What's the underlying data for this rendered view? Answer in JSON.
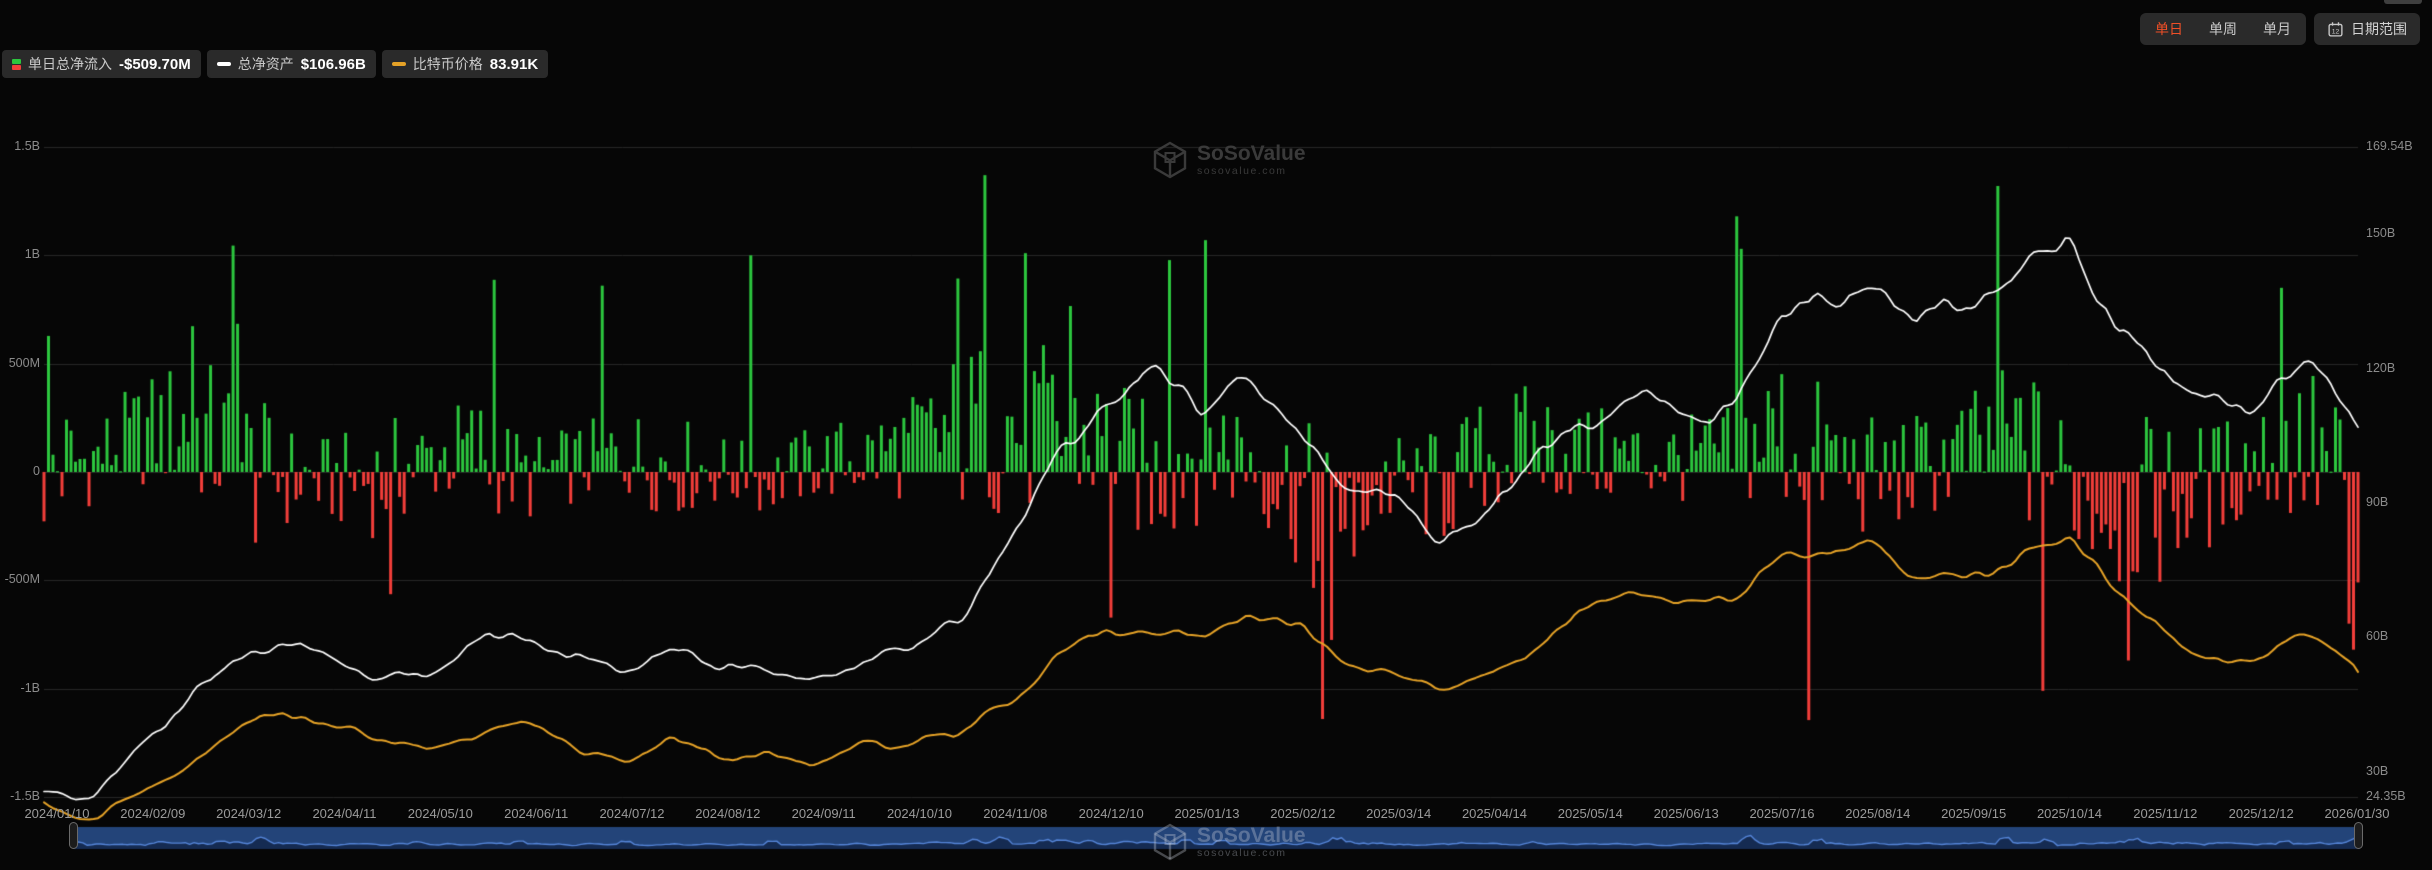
{
  "header": {
    "periods": [
      {
        "label": "单日",
        "active": true
      },
      {
        "label": "单周",
        "active": false
      },
      {
        "label": "单月",
        "active": false
      }
    ],
    "date_range_label": "日期范围"
  },
  "legend": {
    "items": [
      {
        "label": "单日总净流入",
        "value": "-$509.70M",
        "icon": "split-bar",
        "color_positive": "#2cc63e",
        "color_negative": "#f23e3a"
      },
      {
        "label": "总净资产",
        "value": "$106.96B",
        "icon": "dash",
        "color": "#ffffff"
      },
      {
        "label": "比特币价格",
        "value": "83.91K",
        "icon": "dash",
        "color": "#e5a227"
      }
    ]
  },
  "watermark": {
    "title": "SoSoValue",
    "subtitle": "sosovalue.com"
  },
  "chart_data": {
    "type": "mixed",
    "background": "#060606",
    "grid_color": "#262626",
    "x_axis": {
      "tick_labels": [
        "2024/01/10",
        "2024/02/09",
        "2024/03/12",
        "2024/04/11",
        "2024/05/10",
        "2024/06/11",
        "2024/07/12",
        "2024/08/12",
        "2024/09/11",
        "2024/10/10",
        "2024/11/08",
        "2024/12/10",
        "2025/01/13",
        "2025/02/12",
        "2025/03/14",
        "2025/04/14",
        "2025/05/14",
        "2025/06/13",
        "2025/07/16",
        "2025/08/14",
        "2025/09/15",
        "2025/10/14",
        "2025/11/12",
        "2025/12/12",
        "2026/01/30"
      ]
    },
    "left_axis": {
      "tick_labels": [
        "1.5B",
        "1B",
        "500M",
        "0",
        "-500M",
        "-1B",
        "-1.5B"
      ],
      "tick_values_m": [
        1500,
        1000,
        500,
        0,
        -500,
        -1000,
        -1500
      ]
    },
    "right_axis": {
      "tick_labels": [
        "169.54B",
        "150B",
        "120B",
        "90B",
        "60B",
        "30B",
        "24.35B"
      ],
      "tick_values_b": [
        169.54,
        150,
        120,
        90,
        60,
        30,
        24.35
      ]
    },
    "series": [
      {
        "name": "单日总净流入",
        "type": "bar",
        "axis": "left",
        "unit": "M USD",
        "latest_value": -509.7,
        "color_positive": "#2cc63e",
        "color_negative": "#f23e3a",
        "halfmonth_mean_m": [
          50,
          100,
          320,
          420,
          100,
          -40,
          -80,
          -60,
          120,
          180,
          -60,
          60,
          160,
          60,
          20,
          -80,
          80,
          120,
          220,
          350,
          400,
          300,
          250,
          -50,
          300,
          150,
          -200,
          -250,
          -80,
          -150,
          150,
          250,
          150,
          100,
          100,
          150,
          350,
          100,
          -60,
          60,
          180,
          250,
          -100,
          -300,
          -250,
          -100,
          150,
          200,
          -250
        ],
        "halfmonth_vol_m": [
          350,
          180,
          220,
          300,
          350,
          220,
          180,
          250,
          180,
          250,
          180,
          160,
          180,
          220,
          150,
          140,
          160,
          180,
          220,
          350,
          400,
          350,
          300,
          300,
          350,
          250,
          300,
          300,
          200,
          250,
          250,
          250,
          200,
          200,
          180,
          200,
          350,
          300,
          250,
          220,
          250,
          350,
          300,
          350,
          350,
          250,
          250,
          350,
          350
        ],
        "notable_bars": [
          [
            0.0013,
            628
          ],
          [
            0.065,
            673
          ],
          [
            0.0826,
            1045
          ],
          [
            0.0839,
            684
          ],
          [
            0.0919,
            -326
          ],
          [
            0.149,
            -564
          ],
          [
            0.194,
            887
          ],
          [
            0.241,
            860
          ],
          [
            0.305,
            1000
          ],
          [
            0.395,
            893
          ],
          [
            0.406,
            1370
          ],
          [
            0.425,
            1010
          ],
          [
            0.443,
            766
          ],
          [
            0.462,
            -672
          ],
          [
            0.486,
            978
          ],
          [
            0.501,
            1070
          ],
          [
            0.549,
            -535
          ],
          [
            0.5526,
            -1140
          ],
          [
            0.556,
            -775
          ],
          [
            0.566,
            -390
          ],
          [
            0.732,
            1180
          ],
          [
            0.734,
            1030
          ],
          [
            0.762,
            -1145
          ],
          [
            0.845,
            1320
          ],
          [
            0.864,
            -1010
          ],
          [
            0.9,
            -870
          ],
          [
            0.967,
            850
          ],
          [
            0.997,
            -700
          ],
          [
            0.9987,
            -820
          ],
          [
            1,
            -509.7
          ]
        ]
      },
      {
        "name": "总净资产",
        "type": "line",
        "axis": "right",
        "unit": "B USD",
        "latest_value": 106.96,
        "color": "#ffffff",
        "halfmonth_points_b": [
          26,
          24,
          36,
          46,
          57,
          60,
          56,
          51,
          53,
          59,
          61,
          56,
          51,
          58,
          52,
          54,
          51,
          56,
          59,
          66,
          80,
          98,
          112,
          118,
          112,
          120,
          110,
          94,
          90,
          83,
          87,
          100,
          109,
          114,
          111,
          113,
          129,
          136,
          138,
          130,
          134,
          141,
          149,
          130,
          118,
          113,
          110,
          124,
          107
        ]
      },
      {
        "name": "比特币价格",
        "type": "line",
        "axis": "price",
        "unit": "K USD",
        "latest_value": 83.91,
        "color": "#e5a227",
        "halfmonth_points_k": [
          46,
          40,
          48,
          57,
          68,
          71,
          67,
          63,
          60,
          66,
          69,
          62,
          57,
          65,
          59,
          61,
          57,
          63,
          62,
          67,
          74,
          90,
          97,
          95,
          94,
          101,
          97,
          85,
          84,
          78,
          83,
          93,
          101,
          108,
          105,
          104,
          116,
          119,
          121,
          111,
          113,
          117,
          126,
          109,
          95,
          87,
          89,
          94,
          84
        ]
      }
    ],
    "navigator": {
      "full_range_selected": true,
      "strip_color": "#234479",
      "fill_color": "#152b52",
      "line_color": "#5585d8"
    }
  }
}
